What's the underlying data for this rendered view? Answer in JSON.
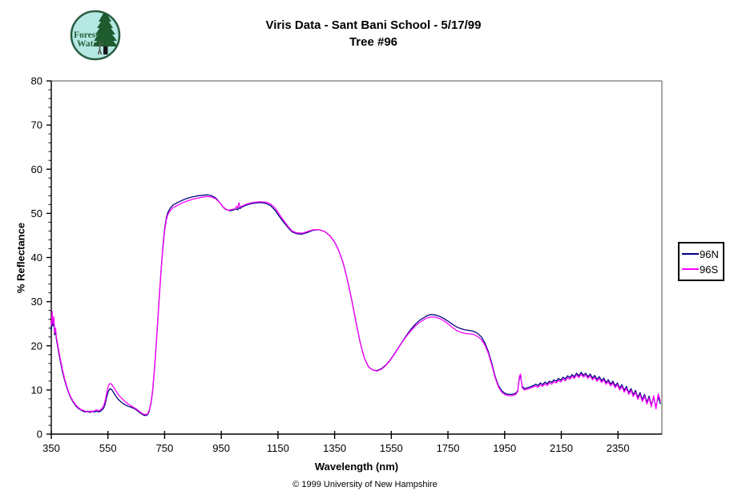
{
  "header": {
    "title_line1": "Viris Data - Sant Bani School - 5/17/99",
    "title_line2": "Tree #96"
  },
  "logo": {
    "line1": "Forest",
    "line2": "Watch",
    "bg_color": "#b5e8e2",
    "accent_color": "#21643c"
  },
  "footer": {
    "copyright": "© 1999 University of New Hampshire"
  },
  "colors": {
    "series_96n": "#000080",
    "series_96s": "#ff00ff",
    "axis": "#000000",
    "plot_border_gray": "#787878"
  },
  "chart_data": {
    "type": "line",
    "title": "Viris Data - Sant Bani School - 5/17/99 — Tree #96",
    "xlabel": "Wavelength (nm)",
    "ylabel": "% Reflectance",
    "xlim": [
      350,
      2505
    ],
    "ylim": [
      0,
      80
    ],
    "x_major_ticks": [
      350,
      550,
      750,
      950,
      1150,
      1350,
      1550,
      1750,
      1950,
      2150,
      2350
    ],
    "y_major_ticks": [
      0,
      10,
      20,
      30,
      40,
      50,
      60,
      70,
      80
    ],
    "y_minor_step": 2,
    "grid": false,
    "legend_position": "right-outside",
    "series": [
      {
        "name": "96N",
        "color": "#000080"
      },
      {
        "name": "96S",
        "color": "#ff00ff"
      }
    ],
    "points_format": [
      "wavelength_nm",
      "96N_percent_reflectance",
      "96S_percent_reflectance"
    ],
    "points": [
      [
        350,
        23.5,
        24.5
      ],
      [
        353,
        26.0,
        27.8
      ],
      [
        356,
        24.5,
        25.0
      ],
      [
        359,
        25.5,
        26.5
      ],
      [
        362,
        22.5,
        23.0
      ],
      [
        365,
        23.5,
        24.0
      ],
      [
        368,
        21.5,
        22.0
      ],
      [
        372,
        20.0,
        20.5
      ],
      [
        376,
        18.5,
        19.0
      ],
      [
        382,
        16.5,
        17.0
      ],
      [
        390,
        14.0,
        14.5
      ],
      [
        398,
        12.0,
        12.3
      ],
      [
        406,
        10.3,
        10.6
      ],
      [
        414,
        8.9,
        9.1
      ],
      [
        422,
        7.8,
        8.0
      ],
      [
        430,
        7.0,
        7.2
      ],
      [
        438,
        6.3,
        6.5
      ],
      [
        446,
        5.8,
        6.0
      ],
      [
        454,
        5.5,
        5.6
      ],
      [
        462,
        5.2,
        5.4
      ],
      [
        470,
        5.0,
        5.2
      ],
      [
        478,
        5.2,
        5.0
      ],
      [
        486,
        4.9,
        5.2
      ],
      [
        494,
        5.2,
        5.0
      ],
      [
        502,
        5.0,
        5.3
      ],
      [
        510,
        5.2,
        5.5
      ],
      [
        518,
        5.0,
        5.3
      ],
      [
        526,
        5.3,
        5.6
      ],
      [
        534,
        5.8,
        6.3
      ],
      [
        540,
        6.8,
        7.5
      ],
      [
        546,
        8.5,
        9.5
      ],
      [
        552,
        9.8,
        11.0
      ],
      [
        558,
        10.3,
        11.5
      ],
      [
        564,
        10.0,
        11.2
      ],
      [
        570,
        9.4,
        10.6
      ],
      [
        578,
        8.6,
        9.8
      ],
      [
        586,
        7.9,
        9.0
      ],
      [
        594,
        7.4,
        8.4
      ],
      [
        602,
        7.0,
        7.9
      ],
      [
        612,
        6.6,
        7.3
      ],
      [
        622,
        6.3,
        6.8
      ],
      [
        632,
        6.1,
        6.4
      ],
      [
        642,
        5.8,
        6.0
      ],
      [
        652,
        5.4,
        5.6
      ],
      [
        660,
        5.0,
        5.2
      ],
      [
        668,
        4.6,
        4.8
      ],
      [
        676,
        4.3,
        4.5
      ],
      [
        684,
        4.2,
        4.4
      ],
      [
        690,
        4.4,
        4.6
      ],
      [
        696,
        5.2,
        5.4
      ],
      [
        702,
        7.0,
        7.2
      ],
      [
        708,
        10.0,
        10.2
      ],
      [
        714,
        14.5,
        14.7
      ],
      [
        720,
        20.0,
        20.0
      ],
      [
        726,
        26.0,
        26.0
      ],
      [
        732,
        32.0,
        32.0
      ],
      [
        738,
        37.5,
        37.5
      ],
      [
        744,
        42.5,
        42.0
      ],
      [
        750,
        46.5,
        46.0
      ],
      [
        756,
        49.0,
        48.5
      ],
      [
        762,
        50.3,
        49.8
      ],
      [
        770,
        51.2,
        50.6
      ],
      [
        780,
        51.9,
        51.3
      ],
      [
        795,
        52.4,
        51.8
      ],
      [
        810,
        52.9,
        52.3
      ],
      [
        825,
        53.3,
        52.7
      ],
      [
        840,
        53.6,
        53.0
      ],
      [
        855,
        53.8,
        53.3
      ],
      [
        870,
        54.0,
        53.5
      ],
      [
        885,
        54.1,
        53.7
      ],
      [
        900,
        54.2,
        53.8
      ],
      [
        915,
        54.0,
        53.7
      ],
      [
        930,
        53.5,
        53.3
      ],
      [
        945,
        52.4,
        52.4
      ],
      [
        955,
        51.5,
        51.6
      ],
      [
        965,
        50.9,
        51.0
      ],
      [
        975,
        50.7,
        50.7
      ],
      [
        982,
        50.6,
        50.8
      ],
      [
        990,
        50.7,
        50.9
      ],
      [
        998,
        50.9,
        51.0
      ],
      [
        1004,
        51.0,
        51.6
      ],
      [
        1008,
        50.8,
        51.2
      ],
      [
        1012,
        51.3,
        52.4
      ],
      [
        1016,
        51.1,
        51.5
      ],
      [
        1022,
        51.4,
        51.6
      ],
      [
        1035,
        51.8,
        52.0
      ],
      [
        1050,
        52.1,
        52.3
      ],
      [
        1065,
        52.3,
        52.5
      ],
      [
        1080,
        52.4,
        52.6
      ],
      [
        1095,
        52.4,
        52.6
      ],
      [
        1110,
        52.2,
        52.5
      ],
      [
        1125,
        51.7,
        52.1
      ],
      [
        1140,
        50.7,
        51.2
      ],
      [
        1155,
        49.3,
        49.8
      ],
      [
        1170,
        48.0,
        48.4
      ],
      [
        1185,
        46.8,
        47.1
      ],
      [
        1200,
        45.8,
        46.0
      ],
      [
        1215,
        45.4,
        45.6
      ],
      [
        1235,
        45.3,
        45.5
      ],
      [
        1255,
        45.7,
        45.9
      ],
      [
        1275,
        46.2,
        46.3
      ],
      [
        1295,
        46.3,
        46.3
      ],
      [
        1315,
        45.9,
        45.9
      ],
      [
        1335,
        44.8,
        44.8
      ],
      [
        1350,
        43.5,
        43.5
      ],
      [
        1365,
        41.5,
        41.5
      ],
      [
        1380,
        38.8,
        38.8
      ],
      [
        1395,
        35.0,
        35.0
      ],
      [
        1410,
        30.5,
        30.5
      ],
      [
        1425,
        25.5,
        25.5
      ],
      [
        1440,
        20.8,
        20.8
      ],
      [
        1455,
        17.2,
        17.2
      ],
      [
        1470,
        15.2,
        15.2
      ],
      [
        1485,
        14.5,
        14.5
      ],
      [
        1500,
        14.4,
        14.3
      ],
      [
        1515,
        14.8,
        14.7
      ],
      [
        1530,
        15.6,
        15.5
      ],
      [
        1545,
        16.7,
        16.6
      ],
      [
        1560,
        18.1,
        18.0
      ],
      [
        1575,
        19.6,
        19.5
      ],
      [
        1590,
        21.1,
        21.0
      ],
      [
        1605,
        22.5,
        22.3
      ],
      [
        1620,
        23.8,
        23.5
      ],
      [
        1635,
        24.9,
        24.5
      ],
      [
        1650,
        25.8,
        25.3
      ],
      [
        1665,
        26.4,
        25.9
      ],
      [
        1675,
        26.8,
        26.3
      ],
      [
        1690,
        27.1,
        26.5
      ],
      [
        1705,
        27.0,
        26.5
      ],
      [
        1720,
        26.7,
        26.2
      ],
      [
        1735,
        26.2,
        25.7
      ],
      [
        1750,
        25.6,
        25.0
      ],
      [
        1765,
        24.9,
        24.2
      ],
      [
        1780,
        24.3,
        23.5
      ],
      [
        1795,
        23.9,
        23.1
      ],
      [
        1810,
        23.6,
        22.8
      ],
      [
        1825,
        23.5,
        22.7
      ],
      [
        1840,
        23.3,
        22.6
      ],
      [
        1855,
        22.8,
        22.1
      ],
      [
        1868,
        22.0,
        21.4
      ],
      [
        1880,
        20.7,
        20.2
      ],
      [
        1892,
        18.8,
        18.4
      ],
      [
        1904,
        16.2,
        15.8
      ],
      [
        1916,
        13.2,
        12.9
      ],
      [
        1928,
        11.0,
        10.7
      ],
      [
        1940,
        9.8,
        9.5
      ],
      [
        1952,
        9.2,
        8.9
      ],
      [
        1964,
        9.0,
        8.7
      ],
      [
        1976,
        9.0,
        8.7
      ],
      [
        1988,
        9.2,
        8.9
      ],
      [
        1996,
        9.8,
        9.6
      ],
      [
        2002,
        12.6,
        13.0
      ],
      [
        2006,
        13.2,
        13.6
      ],
      [
        2012,
        10.8,
        10.5
      ],
      [
        2020,
        10.3,
        10.0
      ],
      [
        2030,
        10.5,
        10.2
      ],
      [
        2040,
        10.7,
        10.4
      ],
      [
        2052,
        11.0,
        10.7
      ],
      [
        2060,
        11.3,
        10.9
      ],
      [
        2068,
        11.0,
        10.6
      ],
      [
        2076,
        11.6,
        11.2
      ],
      [
        2084,
        11.2,
        10.8
      ],
      [
        2092,
        11.8,
        11.4
      ],
      [
        2100,
        11.4,
        11.0
      ],
      [
        2108,
        12.0,
        11.6
      ],
      [
        2116,
        11.7,
        11.3
      ],
      [
        2124,
        12.3,
        11.9
      ],
      [
        2132,
        12.0,
        11.6
      ],
      [
        2140,
        12.6,
        12.2
      ],
      [
        2148,
        12.2,
        11.8
      ],
      [
        2156,
        12.9,
        12.5
      ],
      [
        2164,
        12.5,
        12.1
      ],
      [
        2172,
        13.2,
        12.8
      ],
      [
        2180,
        12.8,
        12.4
      ],
      [
        2188,
        13.5,
        13.1
      ],
      [
        2196,
        13.0,
        12.6
      ],
      [
        2204,
        13.8,
        13.4
      ],
      [
        2212,
        13.2,
        12.8
      ],
      [
        2220,
        14.0,
        13.6
      ],
      [
        2228,
        13.3,
        12.9
      ],
      [
        2236,
        13.8,
        13.4
      ],
      [
        2244,
        13.0,
        12.6
      ],
      [
        2252,
        13.6,
        13.2
      ],
      [
        2260,
        12.7,
        12.3
      ],
      [
        2268,
        13.3,
        12.9
      ],
      [
        2276,
        12.4,
        12.0
      ],
      [
        2284,
        13.0,
        12.6
      ],
      [
        2292,
        12.1,
        11.7
      ],
      [
        2300,
        12.7,
        12.3
      ],
      [
        2308,
        11.7,
        11.3
      ],
      [
        2316,
        12.3,
        11.9
      ],
      [
        2324,
        11.3,
        10.9
      ],
      [
        2332,
        12.0,
        11.6
      ],
      [
        2340,
        10.9,
        10.5
      ],
      [
        2348,
        11.6,
        11.2
      ],
      [
        2356,
        10.4,
        10.0
      ],
      [
        2364,
        11.2,
        10.8
      ],
      [
        2372,
        9.9,
        9.5
      ],
      [
        2380,
        10.8,
        10.4
      ],
      [
        2388,
        9.4,
        9.0
      ],
      [
        2396,
        10.3,
        9.9
      ],
      [
        2404,
        8.9,
        8.5
      ],
      [
        2412,
        9.9,
        9.5
      ],
      [
        2420,
        8.3,
        7.9
      ],
      [
        2428,
        9.4,
        9.0
      ],
      [
        2436,
        7.8,
        7.4
      ],
      [
        2444,
        9.0,
        8.6
      ],
      [
        2452,
        7.2,
        6.8
      ],
      [
        2460,
        8.6,
        8.2
      ],
      [
        2468,
        6.6,
        6.2
      ],
      [
        2476,
        8.3,
        8.7
      ],
      [
        2484,
        6.1,
        5.7
      ],
      [
        2492,
        8.5,
        9.1
      ],
      [
        2500,
        6.8,
        7.5
      ]
    ]
  }
}
